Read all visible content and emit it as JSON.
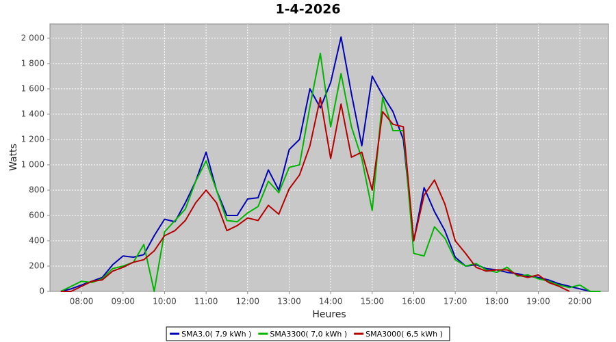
{
  "chart_data": {
    "type": "line",
    "title": "1-4-2026",
    "x_label": "Heures",
    "y_label": "Watts",
    "x": [
      7.5,
      7.75,
      8,
      8.25,
      8.5,
      8.75,
      9,
      9.25,
      9.5,
      9.75,
      10,
      10.25,
      10.5,
      10.75,
      11,
      11.25,
      11.5,
      11.75,
      12,
      12.25,
      12.5,
      12.75,
      13,
      13.25,
      13.5,
      13.75,
      14,
      14.25,
      14.5,
      14.75,
      15,
      15.25,
      15.5,
      15.75,
      16,
      16.25,
      16.5,
      16.75,
      17,
      17.25,
      17.5,
      17.75,
      18,
      18.25,
      18.5,
      18.75,
      19,
      19.25,
      19.5,
      19.75,
      20,
      20.25,
      20.5
    ],
    "series": [
      {
        "name": "SMA3.0( 7,9 kWh )",
        "color": "#0000b4",
        "values": [
          0,
          20,
          50,
          80,
          110,
          210,
          280,
          270,
          290,
          440,
          570,
          550,
          700,
          870,
          1100,
          800,
          600,
          600,
          730,
          740,
          960,
          800,
          1120,
          1200,
          1600,
          1450,
          1650,
          2010,
          1560,
          1150,
          1700,
          1550,
          1420,
          1200,
          400,
          820,
          630,
          480,
          270,
          200,
          210,
          180,
          170,
          150,
          140,
          120,
          110,
          90,
          60,
          40,
          20,
          0,
          0
        ]
      },
      {
        "name": "SMA3300( 7,0 kWh )",
        "color": "#00b400",
        "values": [
          0,
          40,
          80,
          70,
          100,
          180,
          200,
          230,
          370,
          0,
          470,
          560,
          650,
          870,
          1030,
          800,
          560,
          550,
          620,
          670,
          870,
          780,
          980,
          1000,
          1460,
          1880,
          1300,
          1720,
          1300,
          1050,
          640,
          1530,
          1270,
          1270,
          300,
          280,
          510,
          420,
          250,
          200,
          220,
          170,
          150,
          190,
          120,
          130,
          100,
          80,
          50,
          30,
          50,
          0,
          0
        ]
      },
      {
        "name": "SMA3000( 6,5 kWh )",
        "color": "#b40000",
        "values": [
          0,
          0,
          40,
          80,
          90,
          160,
          190,
          230,
          250,
          320,
          440,
          480,
          560,
          700,
          800,
          700,
          480,
          520,
          580,
          560,
          680,
          610,
          810,
          920,
          1150,
          1530,
          1050,
          1480,
          1060,
          1100,
          800,
          1420,
          1320,
          1300,
          400,
          760,
          880,
          690,
          400,
          300,
          190,
          160,
          170,
          170,
          130,
          110,
          130,
          70,
          40,
          0,
          null,
          null,
          null
        ]
      }
    ],
    "xlim": [
      7.24,
      20.69
    ],
    "ylim": [
      0,
      2113
    ],
    "xticks": [
      {
        "value": 8,
        "label": "08:00"
      },
      {
        "value": 9,
        "label": "09:00"
      },
      {
        "value": 10,
        "label": "10:00"
      },
      {
        "value": 11,
        "label": "11:00"
      },
      {
        "value": 12,
        "label": "12:00"
      },
      {
        "value": 13,
        "label": "13:00"
      },
      {
        "value": 14,
        "label": "14:00"
      },
      {
        "value": 15,
        "label": "15:00"
      },
      {
        "value": 16,
        "label": "16:00"
      },
      {
        "value": 17,
        "label": "17:00"
      },
      {
        "value": 18,
        "label": "18:00"
      },
      {
        "value": 19,
        "label": "19:00"
      },
      {
        "value": 20,
        "label": "20:00"
      }
    ],
    "yticks": [
      0,
      200,
      400,
      600,
      800,
      {
        "value": 1000,
        "label": "1 000"
      },
      {
        "value": 1200,
        "label": "1 200"
      },
      {
        "value": 1400,
        "label": "1 400"
      },
      {
        "value": 1600,
        "label": "1 600"
      },
      {
        "value": 1800,
        "label": "1 800"
      },
      {
        "value": 2000,
        "label": "2 000"
      }
    ],
    "grid": true,
    "legend": "bottom"
  }
}
